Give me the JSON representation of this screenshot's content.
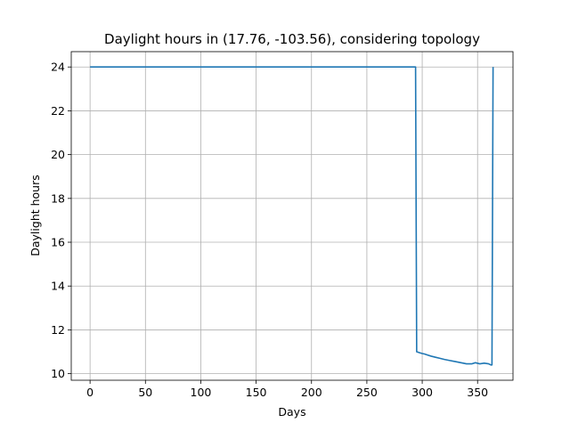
{
  "chart_data": {
    "type": "line",
    "title": "Daylight hours in (17.76, -103.56), considering topology",
    "xlabel": "Days",
    "ylabel": "Daylight hours",
    "xlim": [
      -17,
      382
    ],
    "ylim": [
      9.7,
      24.7
    ],
    "x_ticks": [
      0,
      50,
      100,
      150,
      200,
      250,
      300,
      350
    ],
    "y_ticks": [
      10,
      12,
      14,
      16,
      18,
      20,
      22,
      24
    ],
    "grid": true,
    "legend": "none",
    "line_color": "#1f77b4",
    "series": [
      {
        "points": [
          [
            0,
            24.0
          ],
          [
            100,
            24.0
          ],
          [
            200,
            24.0
          ],
          [
            294,
            24.0
          ],
          [
            295,
            11.0
          ],
          [
            298,
            10.95
          ],
          [
            300,
            10.92
          ],
          [
            302,
            10.9
          ],
          [
            305,
            10.85
          ],
          [
            308,
            10.8
          ],
          [
            312,
            10.75
          ],
          [
            316,
            10.7
          ],
          [
            320,
            10.65
          ],
          [
            325,
            10.6
          ],
          [
            330,
            10.55
          ],
          [
            335,
            10.5
          ],
          [
            340,
            10.45
          ],
          [
            345,
            10.45
          ],
          [
            348,
            10.5
          ],
          [
            352,
            10.45
          ],
          [
            356,
            10.48
          ],
          [
            360,
            10.45
          ],
          [
            362,
            10.4
          ],
          [
            363,
            10.4
          ],
          [
            364,
            24.0
          ]
        ]
      }
    ]
  }
}
